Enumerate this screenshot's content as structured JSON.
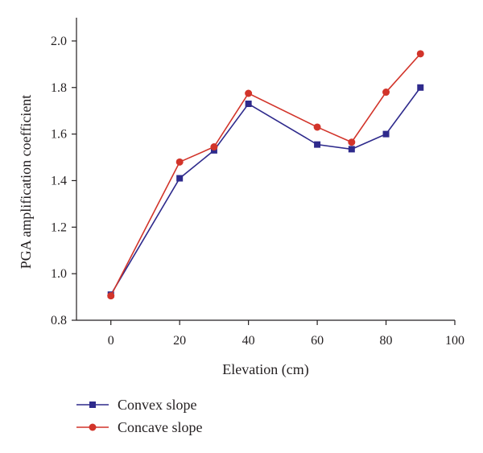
{
  "chart_data": {
    "type": "line",
    "title": "",
    "xlabel": "Elevation (cm)",
    "ylabel": "PGA amplification coefficient",
    "xlim": [
      -10,
      100
    ],
    "ylim": [
      0.8,
      2.1
    ],
    "xticks": [
      0,
      20,
      40,
      60,
      80,
      100
    ],
    "yticks": [
      0.8,
      1.0,
      1.2,
      1.4,
      1.6,
      1.8,
      2.0
    ],
    "xtick_labels": [
      "0",
      "20",
      "40",
      "60",
      "80",
      "100"
    ],
    "ytick_labels": [
      "0.8",
      "1.0",
      "1.2",
      "1.4",
      "1.6",
      "1.8",
      "2.0"
    ],
    "x": [
      0,
      20,
      30,
      40,
      60,
      70,
      80,
      90
    ],
    "series": [
      {
        "name": "Convex slope",
        "color": "#2e2a8c",
        "marker": "square",
        "values": [
          0.91,
          1.41,
          1.53,
          1.73,
          1.555,
          1.535,
          1.6,
          1.8
        ]
      },
      {
        "name": "Concave slope",
        "color": "#d2342a",
        "marker": "circle",
        "values": [
          0.905,
          1.48,
          1.545,
          1.775,
          1.63,
          1.565,
          1.78,
          1.945
        ]
      }
    ],
    "grid": false,
    "legend_position": "bottom-left"
  }
}
